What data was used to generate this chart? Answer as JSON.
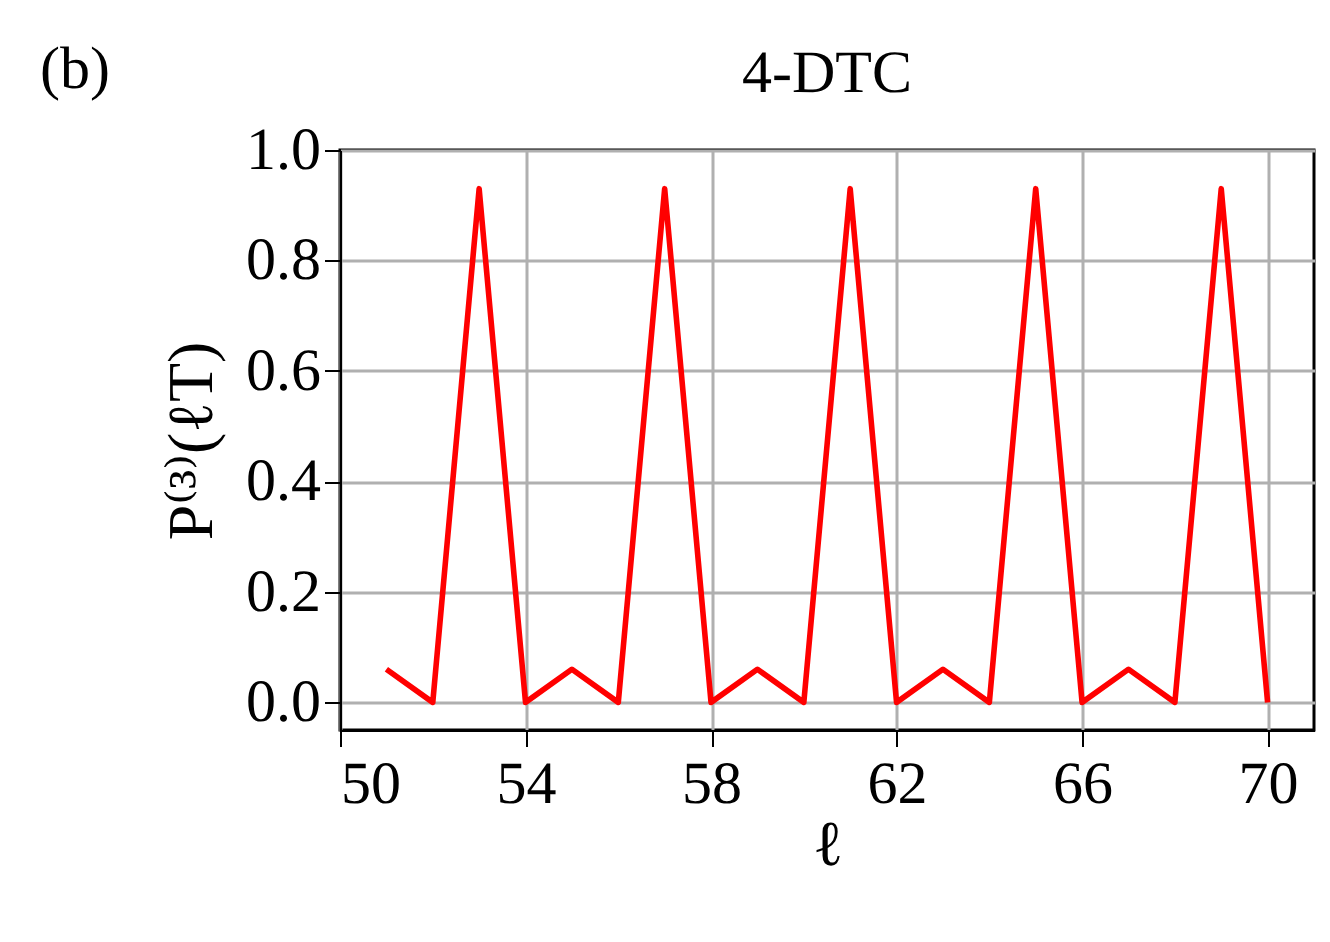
{
  "chart_data": {
    "type": "line",
    "title": "4-DTC",
    "xlabel": "ℓ",
    "ylabel": "P⁽³⁾(ℓT)",
    "annotations": [
      "(b)"
    ],
    "x": [
      51,
      52,
      53,
      54,
      55,
      56,
      57,
      58,
      59,
      60,
      61,
      62,
      63,
      64,
      65,
      66,
      67,
      68,
      69,
      70
    ],
    "series": [
      {
        "color": "#ff0000",
        "values": [
          0.06,
          0,
          0.93,
          0,
          0.06,
          0,
          0.93,
          0,
          0.06,
          0,
          0.93,
          0,
          0.06,
          0,
          0.93,
          0,
          0.06,
          0,
          0.93,
          0
        ]
      }
    ],
    "xlim": [
      50,
      71
    ],
    "xticks": [
      50,
      54,
      58,
      62,
      66,
      70
    ],
    "ylim": [
      -0.05,
      1.0
    ],
    "yticks": [
      {
        "value": 0,
        "label": "0.0"
      },
      0.2,
      0.4,
      0.6,
      0.8,
      {
        "value": 1,
        "label": "1.0"
      }
    ],
    "grid": true,
    "legend": false,
    "marker": "none",
    "line_style": "solid"
  }
}
